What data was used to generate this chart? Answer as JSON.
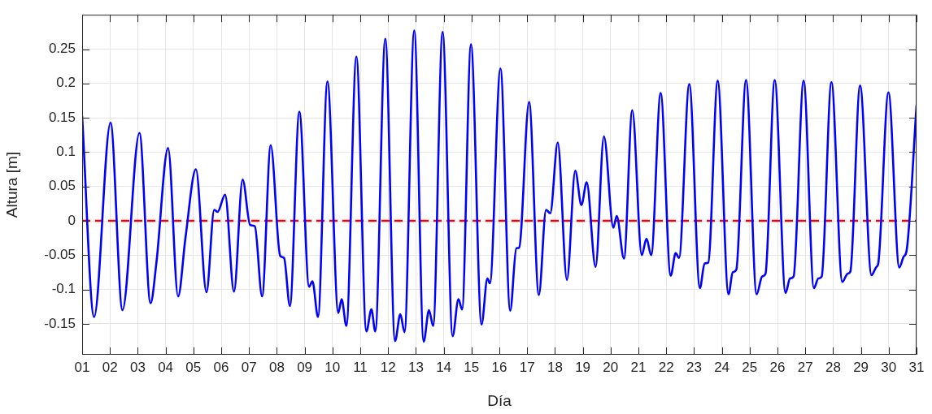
{
  "chart_data": {
    "type": "line",
    "xlabel": "Día",
    "ylabel": "Altura [m]",
    "x": [
      1,
      1.43,
      2.02,
      2.45,
      3.06,
      3.46,
      3.67,
      4.09,
      4.45,
      4.72,
      5.09,
      5.47,
      5.75,
      5.87,
      6.14,
      6.46,
      6.77,
      7.04,
      7.21,
      7.47,
      7.78,
      8.12,
      8.26,
      8.47,
      8.81,
      9.16,
      9.28,
      9.48,
      9.82,
      10.21,
      10.33,
      10.5,
      10.86,
      11.22,
      11.4,
      11.54,
      11.9,
      12.25,
      12.44,
      12.59,
      12.94,
      13.28,
      13.47,
      13.62,
      13.96,
      14.32,
      14.53,
      14.66,
      14.98,
      15.36,
      15.57,
      15.66,
      16.04,
      16.39,
      16.61,
      16.71,
      17.07,
      17.42,
      17.68,
      17.83,
      18.1,
      18.43,
      18.73,
      18.95,
      19.14,
      19.46,
      19.76,
      20.1,
      20.22,
      20.48,
      20.78,
      21.12,
      21.29,
      21.46,
      21.8,
      22.16,
      22.34,
      22.46,
      22.83,
      23.21,
      23.38,
      23.51,
      23.85,
      24.24,
      24.39,
      24.52,
      24.87,
      25.25,
      25.45,
      25.57,
      25.9,
      26.29,
      26.45,
      26.58,
      26.94,
      27.31,
      27.47,
      27.59,
      27.94,
      28.33,
      28.52,
      28.62,
      28.97,
      29.38,
      29.56,
      29.62,
      29.99,
      30.38,
      30.54,
      30.64,
      31
    ],
    "series": [
      {
        "color": "#0000ff",
        "values": [
          0.152,
          -0.14,
          0.143,
          -0.13,
          0.128,
          -0.12,
          -0.061,
          0.106,
          -0.11,
          -0.023,
          0.075,
          -0.104,
          0.016,
          0.013,
          0.038,
          -0.103,
          0.06,
          -0.006,
          -0.008,
          -0.11,
          0.11,
          -0.051,
          -0.054,
          -0.124,
          0.159,
          -0.096,
          -0.088,
          -0.14,
          0.203,
          -0.134,
          -0.114,
          -0.153,
          0.239,
          -0.161,
          -0.129,
          -0.161,
          0.265,
          -0.175,
          -0.136,
          -0.162,
          0.277,
          -0.176,
          -0.13,
          -0.153,
          0.275,
          -0.168,
          -0.114,
          -0.129,
          0.257,
          -0.151,
          -0.084,
          -0.091,
          0.222,
          -0.131,
          -0.04,
          -0.039,
          0.173,
          -0.108,
          0.016,
          0.011,
          0.114,
          -0.086,
          0.073,
          0.023,
          0.056,
          -0.067,
          0.123,
          -0.01,
          0.007,
          -0.055,
          0.161,
          -0.05,
          -0.026,
          -0.05,
          0.186,
          -0.08,
          -0.047,
          -0.054,
          0.199,
          -0.098,
          -0.062,
          -0.061,
          0.204,
          -0.107,
          -0.075,
          -0.071,
          0.205,
          -0.107,
          -0.081,
          -0.077,
          0.205,
          -0.105,
          -0.084,
          -0.081,
          0.204,
          -0.098,
          -0.084,
          -0.081,
          0.202,
          -0.089,
          -0.077,
          -0.074,
          0.197,
          -0.079,
          -0.067,
          -0.063,
          0.187,
          -0.068,
          -0.052,
          -0.044,
          0.168
        ]
      }
    ],
    "xlim": [
      1,
      31
    ],
    "xticks": [
      {
        "value": 1,
        "label": "01"
      },
      {
        "value": 2,
        "label": "02"
      },
      {
        "value": 3,
        "label": "03"
      },
      {
        "value": 4,
        "label": "04"
      },
      {
        "value": 5,
        "label": "05"
      },
      {
        "value": 6,
        "label": "06"
      },
      {
        "value": 7,
        "label": "07"
      },
      {
        "value": 8,
        "label": "08"
      },
      {
        "value": 9,
        "label": "09"
      },
      10,
      11,
      12,
      13,
      14,
      15,
      16,
      17,
      18,
      19,
      20,
      21,
      22,
      23,
      24,
      25,
      26,
      27,
      28,
      29,
      30,
      31
    ],
    "ylim": [
      -0.195,
      0.3
    ],
    "yticks": [
      -0.15,
      -0.1,
      -0.05,
      0,
      0.05,
      0.1,
      0.15,
      0.2,
      0.25
    ],
    "ref_lines": [
      {
        "axis": "y",
        "value": 0,
        "color": "#ff0000",
        "line_style": "dashed"
      }
    ],
    "grid": true,
    "legend": false,
    "marker": "none",
    "line_style": "solid"
  }
}
